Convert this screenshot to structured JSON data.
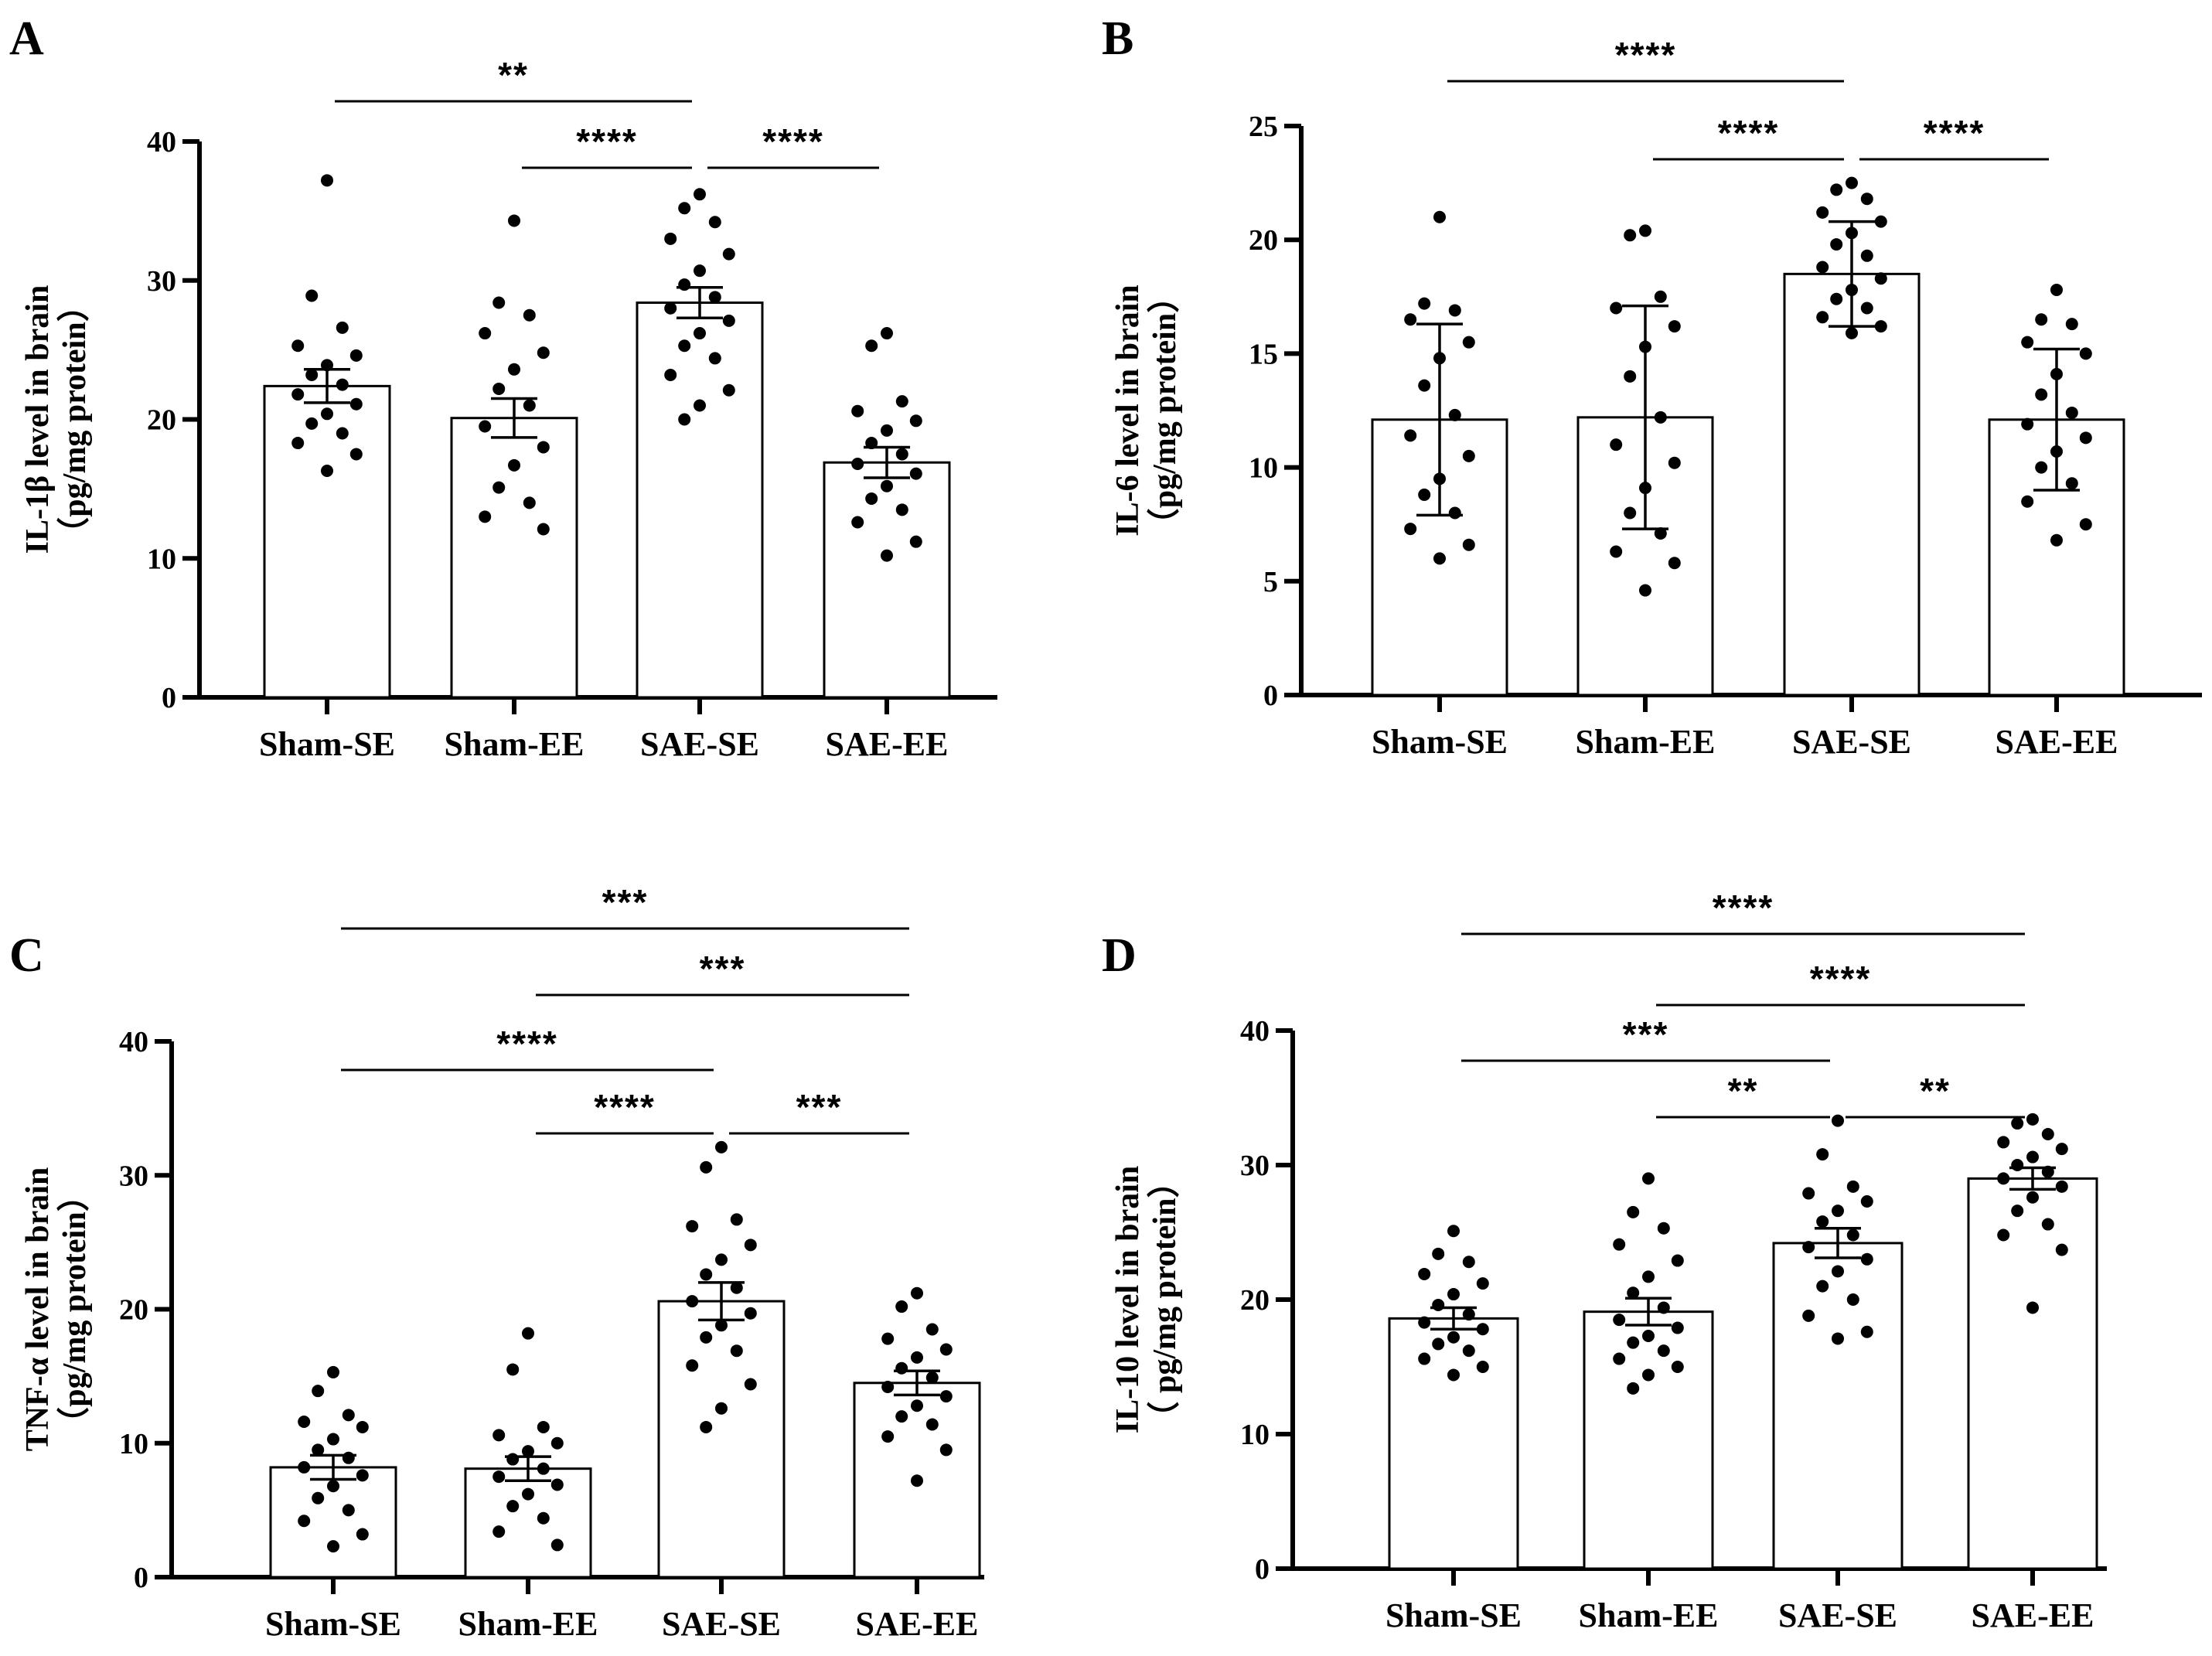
{
  "chart_data": [
    {
      "panel": "A",
      "type": "bar",
      "ylabel_line1": "IL-1β level in brain",
      "ylabel_line2": "（pg/mg protein）",
      "ylim": [
        0,
        40
      ],
      "yticks": [
        "0",
        "10",
        "20",
        "30",
        "40"
      ],
      "categories": [
        "Sham-SE",
        "Sham-EE",
        "SAE-SE",
        "SAE-EE"
      ],
      "values": [
        22.4,
        20.1,
        28.4,
        16.9
      ],
      "errors": [
        1.2,
        1.4,
        1.1,
        1.1
      ],
      "points": [
        [
          37.2,
          28.9,
          26.6,
          25.3,
          24.6,
          23.9,
          23.2,
          22.5,
          21.8,
          21.1,
          20.4,
          19.7,
          19.0,
          18.3,
          17.5,
          16.3
        ],
        [
          34.3,
          28.4,
          27.5,
          26.2,
          24.8,
          23.6,
          22.2,
          21.0,
          19.5,
          18.0,
          16.7,
          15.1,
          14.0,
          13.0,
          12.1
        ],
        [
          36.2,
          35.2,
          34.2,
          33.0,
          31.9,
          30.7,
          29.7,
          28.8,
          28.0,
          27.1,
          26.2,
          25.3,
          24.4,
          23.2,
          22.1,
          21.0,
          20.0
        ],
        [
          26.2,
          25.3,
          21.3,
          20.6,
          19.9,
          19.2,
          18.3,
          17.5,
          16.8,
          16.1,
          15.2,
          14.3,
          13.5,
          12.6,
          11.2,
          10.2
        ]
      ],
      "significance": [
        {
          "from": 0,
          "to": 2,
          "label": "**"
        },
        {
          "from": 1,
          "to": 2,
          "label": "****"
        },
        {
          "from": 2,
          "to": 3,
          "label": "****"
        }
      ]
    },
    {
      "panel": "B",
      "type": "bar",
      "ylabel_line1": "IL-6 level in brain",
      "ylabel_line2": "（pg/mg protein）",
      "ylim": [
        0,
        25
      ],
      "yticks": [
        "0",
        "5",
        "10",
        "15",
        "20",
        "25"
      ],
      "categories": [
        "Sham-SE",
        "Sham-EE",
        "SAE-SE",
        "SAE-EE"
      ],
      "values": [
        12.1,
        12.2,
        18.5,
        12.1
      ],
      "errors": [
        4.2,
        4.9,
        2.3,
        3.1
      ],
      "points": [
        [
          21.0,
          17.2,
          16.9,
          16.5,
          15.5,
          14.8,
          13.6,
          12.3,
          11.4,
          10.5,
          9.5,
          8.8,
          8.0,
          7.3,
          6.6,
          6.0
        ],
        [
          20.4,
          20.2,
          17.5,
          17.0,
          16.2,
          15.3,
          14.0,
          12.2,
          11.0,
          10.2,
          9.1,
          8.0,
          7.1,
          6.3,
          5.8,
          4.6
        ],
        [
          22.5,
          22.2,
          21.8,
          21.2,
          20.8,
          20.3,
          19.8,
          19.3,
          18.8,
          18.3,
          17.8,
          17.4,
          17.0,
          16.6,
          16.2,
          15.9
        ],
        [
          17.8,
          16.5,
          16.3,
          15.5,
          15.0,
          14.1,
          13.2,
          12.4,
          11.9,
          11.3,
          10.7,
          10.0,
          9.3,
          8.5,
          7.5,
          6.8
        ]
      ],
      "significance": [
        {
          "from": 0,
          "to": 2,
          "label": "****"
        },
        {
          "from": 1,
          "to": 2,
          "label": "****"
        },
        {
          "from": 2,
          "to": 3,
          "label": "****"
        }
      ]
    },
    {
      "panel": "C",
      "type": "bar",
      "ylabel_line1": "TNF-α level in brain",
      "ylabel_line2": "（pg/mg protein）",
      "ylim": [
        0,
        40
      ],
      "yticks": [
        "0",
        "10",
        "20",
        "30",
        "40"
      ],
      "categories": [
        "Sham-SE",
        "Sham-EE",
        "SAE-SE",
        "SAE-EE"
      ],
      "values": [
        8.2,
        8.1,
        20.6,
        14.5
      ],
      "errors": [
        0.9,
        0.9,
        1.4,
        0.9
      ],
      "points": [
        [
          15.3,
          13.9,
          12.1,
          11.6,
          11.2,
          10.3,
          9.5,
          8.9,
          8.2,
          7.6,
          6.8,
          5.9,
          5.0,
          4.2,
          3.2,
          2.3
        ],
        [
          18.2,
          15.5,
          11.2,
          10.6,
          10.0,
          9.4,
          8.8,
          8.1,
          7.5,
          6.9,
          6.2,
          5.3,
          4.4,
          3.4,
          2.4
        ],
        [
          32.1,
          30.6,
          26.7,
          26.2,
          24.8,
          23.7,
          22.6,
          21.6,
          20.6,
          19.7,
          18.8,
          17.9,
          16.9,
          15.8,
          14.4,
          12.6,
          11.2
        ],
        [
          21.2,
          20.2,
          18.5,
          17.8,
          17.0,
          16.4,
          15.6,
          14.9,
          14.2,
          13.5,
          12.8,
          12.0,
          11.4,
          10.5,
          9.5,
          7.2
        ]
      ],
      "significance": [
        {
          "from": 0,
          "to": 3,
          "label": "***"
        },
        {
          "from": 1,
          "to": 3,
          "label": "***"
        },
        {
          "from": 0,
          "to": 2,
          "label": "****"
        },
        {
          "from": 1,
          "to": 2,
          "label": "****"
        },
        {
          "from": 2,
          "to": 3,
          "label": "***"
        }
      ]
    },
    {
      "panel": "D",
      "type": "bar",
      "ylabel_line1": "IL-10 level in brain",
      "ylabel_line2": "（ pg/mg protein）",
      "ylim": [
        0,
        40
      ],
      "yticks": [
        "0",
        "10",
        "20",
        "30",
        "40"
      ],
      "categories": [
        "Sham-SE",
        "Sham-EE",
        "SAE-SE",
        "SAE-EE"
      ],
      "values": [
        18.6,
        19.1,
        24.2,
        29.0
      ],
      "errors": [
        0.8,
        1.0,
        1.1,
        0.8
      ],
      "points": [
        [
          25.1,
          23.4,
          22.8,
          21.9,
          21.2,
          20.4,
          19.6,
          18.9,
          18.3,
          17.8,
          17.2,
          16.7,
          16.2,
          15.6,
          15.0,
          14.4
        ],
        [
          29.0,
          26.5,
          25.3,
          24.1,
          22.9,
          21.7,
          20.5,
          19.4,
          18.5,
          17.9,
          17.3,
          16.8,
          16.2,
          15.6,
          15.0,
          14.4,
          13.4
        ],
        [
          33.3,
          30.8,
          28.4,
          27.9,
          27.3,
          26.6,
          25.8,
          24.8,
          23.9,
          23.0,
          22.1,
          21.0,
          20.0,
          18.8,
          17.6,
          17.1
        ],
        [
          33.4,
          33.1,
          32.3,
          31.7,
          31.2,
          30.6,
          30.0,
          29.5,
          29.0,
          28.4,
          27.6,
          26.6,
          25.6,
          24.8,
          23.7,
          19.4
        ]
      ],
      "significance": [
        {
          "from": 0,
          "to": 3,
          "label": "****"
        },
        {
          "from": 1,
          "to": 3,
          "label": "****"
        },
        {
          "from": 0,
          "to": 2,
          "label": "***"
        },
        {
          "from": 1,
          "to": 2,
          "label": "**"
        },
        {
          "from": 2,
          "to": 3,
          "label": "**"
        }
      ]
    }
  ]
}
